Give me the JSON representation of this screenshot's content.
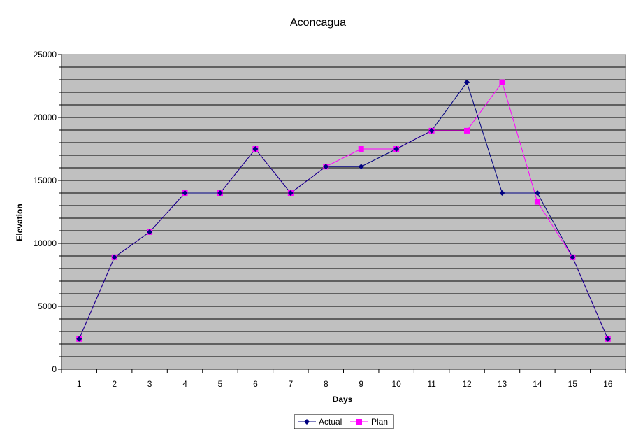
{
  "chart_data": {
    "type": "line",
    "title": "Aconcagua",
    "xlabel": "Days",
    "ylabel": "Elevation",
    "ylim": [
      0,
      25000
    ],
    "y_ticks": [
      0,
      5000,
      10000,
      15000,
      20000,
      25000
    ],
    "grid": true,
    "legend_position": "bottom",
    "plot_background": "#c0c0c0",
    "x": [
      1,
      2,
      3,
      4,
      5,
      6,
      7,
      8,
      9,
      10,
      11,
      12,
      13,
      14,
      15,
      16
    ],
    "series": [
      {
        "name": "Actual",
        "color": "#000080",
        "marker": "diamond",
        "values": [
          2400,
          8900,
          10900,
          14000,
          14000,
          17500,
          14000,
          16100,
          16100,
          17500,
          18950,
          22800,
          14000,
          14000,
          8900,
          2400
        ]
      },
      {
        "name": "Plan",
        "color": "#ff00ff",
        "marker": "square",
        "values": [
          2400,
          8900,
          10900,
          14000,
          14000,
          17500,
          14000,
          16100,
          17500,
          17500,
          18950,
          18950,
          22800,
          13300,
          8900,
          2400
        ]
      }
    ]
  }
}
